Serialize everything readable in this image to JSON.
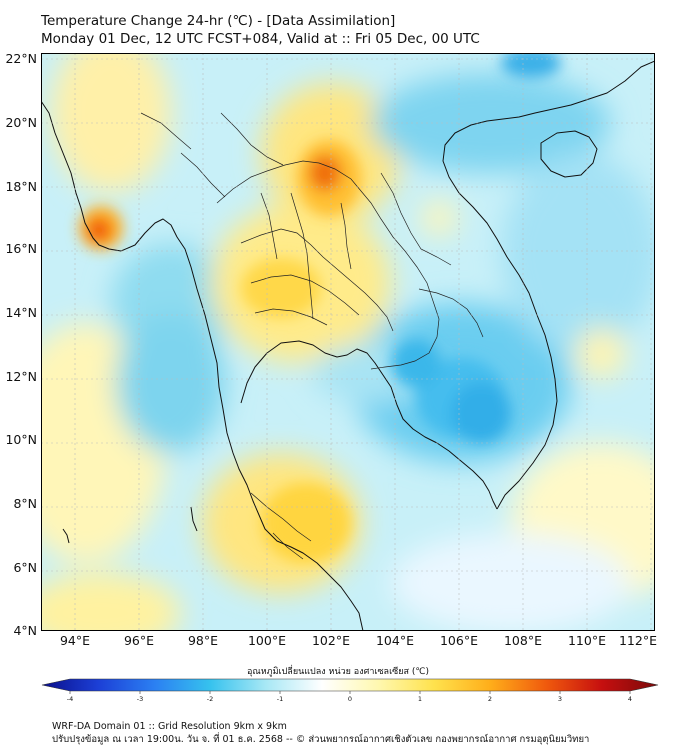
{
  "title": {
    "line1": "Temperature Change 24-hr (℃) - [Data Assimilation]",
    "line2": "Monday 01 Dec, 12 UTC FCST+084, Valid at :: Fri 05 Dec, 00 UTC"
  },
  "axes": {
    "lat_labels": [
      "22°N",
      "20°N",
      "18°N",
      "16°N",
      "14°N",
      "12°N",
      "10°N",
      "8°N",
      "6°N",
      "4°N"
    ],
    "lon_labels": [
      "94°E",
      "96°E",
      "98°E",
      "100°E",
      "102°E",
      "104°E",
      "106°E",
      "108°E",
      "110°E",
      "112°E"
    ],
    "lat_range": [
      4,
      22
    ],
    "lon_range": [
      93.1,
      112.3
    ]
  },
  "colorbar": {
    "label": "อุณหภูมิเปลี่ยนแปลง หน่วย องศาเซลเซียส (℃)",
    "ticks": [
      "-4",
      "-3",
      "-2",
      "-1",
      "0",
      "1",
      "2",
      "3",
      "4"
    ],
    "min": -4,
    "max": 4,
    "colors": [
      "#0a0f8a",
      "#1c3fd6",
      "#2b7ff2",
      "#36c2ee",
      "#a8e8f5",
      "#ffffff",
      "#fff8b0",
      "#ffe24d",
      "#ffae1a",
      "#f05a0d",
      "#c60f0f",
      "#7a0a0a"
    ]
  },
  "footer": {
    "line1": "WRF-DA Domain 01 :: Grid Resolution 9km x 9km",
    "line2": "ปรับปรุงข้อมูล ณ เวลา 19:00น. วัน จ. ที่ 01 ธ.ค. 2568 -- © ส่วนพยากรณ์อากาศเชิงตัวเลข กองพยากรณ์อากาศ กรมอุตุนิยมวิทยา"
  },
  "field_anomalies": [
    {
      "name": "warm-myanmar-coast",
      "lon": 95.0,
      "lat": 16.6,
      "value": 3.0
    },
    {
      "name": "warm-northern-laos",
      "lon": 102.0,
      "lat": 18.3,
      "value": 2.8
    },
    {
      "name": "warm-northern-thailand",
      "lon": 101.2,
      "lat": 15.6,
      "value": 1.6
    },
    {
      "name": "warm-south-peninsula",
      "lon": 101.3,
      "lat": 7.0,
      "value": 1.8
    },
    {
      "name": "warm-bay-of-bengal",
      "lon": 94.2,
      "lat": 20.4,
      "value": 1.2
    },
    {
      "name": "cool-cambodia",
      "lon": 106.3,
      "lat": 12.4,
      "value": -2.0
    },
    {
      "name": "cool-andaman-sea",
      "lon": 96.5,
      "lat": 12.5,
      "value": -1.5
    },
    {
      "name": "cool-gulf-of-tonkin",
      "lon": 106.5,
      "lat": 20.3,
      "value": -1.5
    },
    {
      "name": "cool-south-china-sea",
      "lon": 110.0,
      "lat": 15.0,
      "value": -1.0
    }
  ]
}
